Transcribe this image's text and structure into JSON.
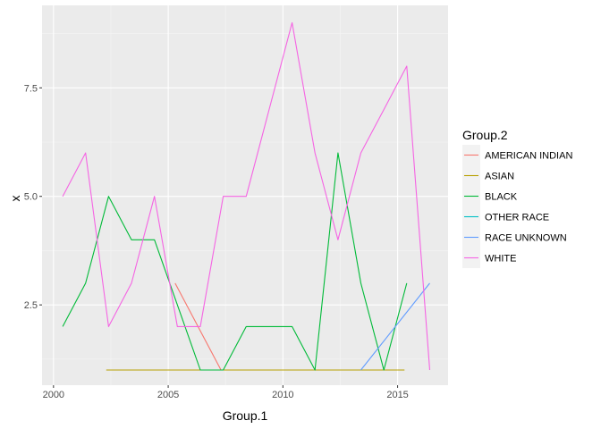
{
  "chart_data": {
    "type": "line",
    "xlabel": "Group.1",
    "ylabel": "x",
    "xlim": [
      1999.5,
      2017.2
    ],
    "ylim": [
      0.65,
      9.4
    ],
    "x_ticks": [
      2000,
      2005,
      2010,
      2015
    ],
    "x_tick_labels": [
      "2000",
      "2005",
      "2010",
      "2015"
    ],
    "y_ticks": [
      2.5,
      5.0,
      7.5
    ],
    "y_tick_labels": [
      "2.5",
      "5.0",
      "7.5"
    ],
    "grid": true,
    "legend_position": "right",
    "legend_title": "Group.2",
    "series": [
      {
        "name": "AMERICAN INDIAN",
        "color": "#F8766D",
        "x": [
          2005.3,
          2007.3
        ],
        "y": [
          3,
          1
        ]
      },
      {
        "name": "ASIAN",
        "color": "#B79F00",
        "x": [
          2002.3,
          2003.3,
          2004.3,
          2005.3,
          2006.3,
          2007.3,
          2008.3,
          2009.3,
          2010.3,
          2011.3,
          2012.3,
          2013.3,
          2014.3,
          2015.3
        ],
        "y": [
          1,
          1,
          1,
          1,
          1,
          1,
          1,
          1,
          1,
          1,
          1,
          1,
          1,
          1
        ]
      },
      {
        "name": "BLACK",
        "color": "#00BA38",
        "x": [
          2000.4,
          2001.4,
          2002.4,
          2003.4,
          2004.4,
          2005.4,
          2006.4,
          2007.4,
          2008.4,
          2009.4,
          2010.4,
          2011.4,
          2012.4,
          2013.4,
          2014.4,
          2015.4
        ],
        "y": [
          2,
          3,
          5,
          4,
          4,
          2.5,
          1,
          1,
          2,
          2,
          2,
          1,
          6,
          3,
          1,
          3
        ]
      },
      {
        "name": "OTHER RACE",
        "color": "#00BFC4",
        "x": [],
        "y": []
      },
      {
        "name": "RACE UNKNOWN",
        "color": "#619CFF",
        "x": [
          2013.4,
          2016.4
        ],
        "y": [
          1,
          3
        ]
      },
      {
        "name": "WHITE",
        "color": "#F564E3",
        "x": [
          2000.4,
          2001.4,
          2002.4,
          2003.4,
          2004.4,
          2005.4,
          2006.4,
          2007.4,
          2008.4,
          2009.4,
          2010.4,
          2011.4,
          2012.4,
          2013.4,
          2014.4,
          2015.4,
          2016.4
        ],
        "y": [
          5,
          6,
          2,
          3,
          5,
          2,
          2,
          5,
          5,
          7,
          9,
          6,
          4,
          6,
          7,
          8,
          1
        ]
      }
    ]
  }
}
